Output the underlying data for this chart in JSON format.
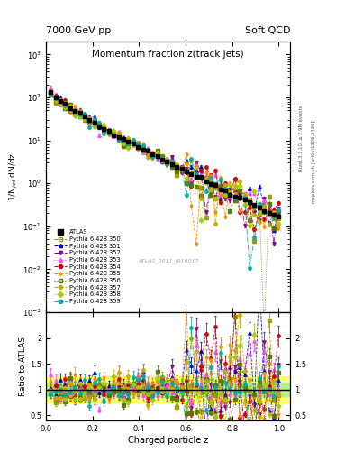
{
  "title_top": "7000 GeV pp",
  "title_right": "Soft QCD",
  "plot_title": "Momentum fraction z(track jets)",
  "ylabel_main": "1/N$_{jet}$ dN/dz",
  "ylabel_ratio": "Ratio to ATLAS",
  "xlabel": "Charged particle z",
  "right_label1": "Rivet 3.1.10, ≥ 2.9M events",
  "right_label2": "mcplots.cern.ch [arXiv:1306.3436]",
  "watermark": "ATLAS_2011_I919017",
  "colors": {
    "ATLAS": "#000000",
    "350": "#999900",
    "351": "#0000CC",
    "352": "#880088",
    "353": "#FF44FF",
    "354": "#CC0000",
    "355": "#FF8800",
    "356": "#557700",
    "357": "#CCAA00",
    "358": "#AACC00",
    "359": "#00AAAA"
  },
  "bg_color": "#ffffff",
  "xlim": [
    0.0,
    1.05
  ],
  "ylim_main_lo": 0.001,
  "ylim_main_hi": 2000,
  "ylim_ratio_lo": 0.4,
  "ylim_ratio_hi": 2.5
}
